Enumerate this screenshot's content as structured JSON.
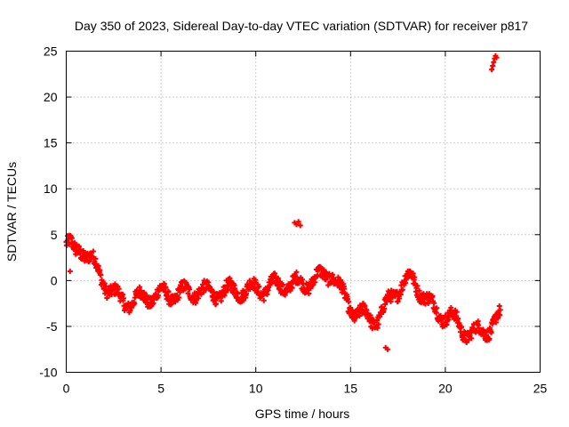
{
  "chart_data": {
    "type": "scatter",
    "title": "Day 350 of 2023, Sidereal Day-to-day VTEC variation (SDTVAR) for receiver p817",
    "xlabel": "GPS time / hours",
    "ylabel": "SDTVAR / TECUs",
    "xlim": [
      0,
      25
    ],
    "ylim": [
      -10,
      25
    ],
    "xticks": [
      0,
      5,
      10,
      15,
      20,
      25
    ],
    "yticks": [
      -10,
      -5,
      0,
      5,
      10,
      15,
      20,
      25
    ],
    "xtick_labels": [
      "0",
      "5",
      "10",
      "15",
      "20",
      "25"
    ],
    "ytick_labels": [
      "-10",
      "-5",
      "0",
      "5",
      "10",
      "15",
      "20",
      "25"
    ],
    "grid": true,
    "marker": "plus",
    "color": "#ff0000",
    "series": [
      {
        "name": "p817",
        "trend_x": [
          0.0,
          0.1,
          0.25,
          0.35,
          0.5,
          0.7,
          0.9,
          1.1,
          1.3,
          1.5,
          1.7,
          1.9,
          2.1,
          2.3,
          2.5,
          2.8,
          3.1,
          3.5,
          4.0,
          4.5,
          5.0,
          5.5,
          6.0,
          6.5,
          7.0,
          7.5,
          8.0,
          8.5,
          9.0,
          9.5,
          10.0,
          10.5,
          11.0,
          11.5,
          12.0,
          12.5,
          13.0,
          13.5,
          14.0,
          14.3,
          14.6,
          14.9,
          15.2,
          15.5,
          15.8,
          16.1,
          16.4,
          16.7,
          17.0,
          17.3,
          17.6,
          17.9,
          18.2,
          18.5,
          18.8,
          19.1,
          19.4,
          19.7,
          20.0,
          20.3,
          20.6,
          20.9,
          21.2,
          21.5,
          21.8,
          22.1,
          22.4,
          22.7,
          22.9
        ],
        "trend_y": [
          4.0,
          3.9,
          3.7,
          3.2,
          3.0,
          3.6,
          3.4,
          2.8,
          2.3,
          1.6,
          0.9,
          0.3,
          -0.4,
          -1.0,
          -1.5,
          -2.0,
          -2.2,
          -2.3,
          -1.9,
          -1.7,
          -1.5,
          -1.6,
          -1.3,
          -1.4,
          -0.9,
          -1.5,
          -1.3,
          -1.2,
          -1.0,
          -1.1,
          -0.9,
          -0.8,
          -0.6,
          -0.4,
          -0.5,
          -0.3,
          0.0,
          0.4,
          1.0,
          -0.5,
          -1.6,
          -2.6,
          -3.3,
          -3.7,
          -3.9,
          -4.2,
          -4.1,
          -3.5,
          -2.4,
          -1.3,
          -0.6,
          -0.1,
          0.2,
          -0.5,
          -1.3,
          -2.4,
          -3.1,
          -3.6,
          -3.8,
          -4.1,
          -4.6,
          -5.2,
          -5.7,
          -5.9,
          -5.6,
          -5.3,
          -5.0,
          -4.5,
          -4.0
        ],
        "spread": 1.3,
        "extra_points": [
          {
            "x": 0.2,
            "y": 1.0
          },
          {
            "x": 12.05,
            "y": 6.3
          },
          {
            "x": 12.15,
            "y": 6.1
          },
          {
            "x": 12.25,
            "y": 6.4
          },
          {
            "x": 12.35,
            "y": 6.0
          },
          {
            "x": 16.85,
            "y": -7.3
          },
          {
            "x": 16.95,
            "y": -7.5
          },
          {
            "x": 22.45,
            "y": 23.0
          },
          {
            "x": 22.5,
            "y": 23.4
          },
          {
            "x": 22.55,
            "y": 23.8
          },
          {
            "x": 22.6,
            "y": 24.2
          },
          {
            "x": 22.65,
            "y": 24.5
          },
          {
            "x": 22.7,
            "y": 24.3
          }
        ]
      }
    ]
  }
}
